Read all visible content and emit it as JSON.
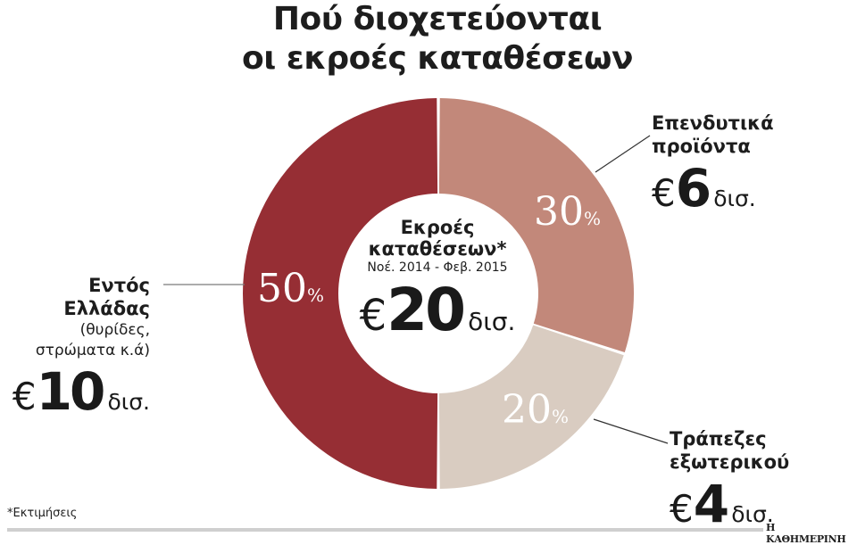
{
  "title": {
    "line1": "Πού διοχετεύονται",
    "line2": "οι εκροές καταθέσεων"
  },
  "center": {
    "heading_line1": "Εκροές",
    "heading_line2": "καταθέσεων*",
    "period": "Νοέ. 2014 - Φεβ. 2015",
    "currency": "€",
    "value": "20",
    "unit": "δισ."
  },
  "segments": [
    {
      "name_line1": "Εντός",
      "name_line2": "Ελλάδας",
      "note_line1": "(θυρίδες,",
      "note_line2": "στρώματα κ.ά)",
      "currency": "€",
      "value": "10",
      "unit": "δισ.",
      "percent": "50",
      "percent_sign": "%",
      "color": "#962E34"
    },
    {
      "name_line1": "Επενδυτικά",
      "name_line2": "προϊόντα",
      "currency": "€",
      "value": "6",
      "unit": "δισ.",
      "percent": "30",
      "percent_sign": "%",
      "color": "#C2887A"
    },
    {
      "name_line1": "Τράπεζες",
      "name_line2": "εξωτερικού",
      "currency": "€",
      "value": "4",
      "unit": "δισ.",
      "percent": "20",
      "percent_sign": "%",
      "color": "#D9CCC1"
    }
  ],
  "footnote": "*Εκτιμήσεις",
  "source_logo": "Η ΚΑΘΗΜΕΡΙΝΗ",
  "chart_data": {
    "type": "pie",
    "variant": "donut",
    "title": "Πού διοχετεύονται οι εκροές καταθέσεων",
    "center_label": "Εκροές καταθέσεων* Νοέ. 2014 - Φεβ. 2015 €20 δισ.",
    "total": 20,
    "total_unit": "δισ. €",
    "categories": [
      "Εντός Ελλάδας (θυρίδες, στρώματα κ.ά)",
      "Επενδυτικά προϊόντα",
      "Τράπεζες εξωτερικού"
    ],
    "values": [
      10,
      6,
      4
    ],
    "percentages": [
      50,
      30,
      20
    ],
    "colors": [
      "#962E34",
      "#C2887A",
      "#D9CCC1"
    ],
    "legend_position": "callout labels",
    "footnote": "*Εκτιμήσεις"
  }
}
